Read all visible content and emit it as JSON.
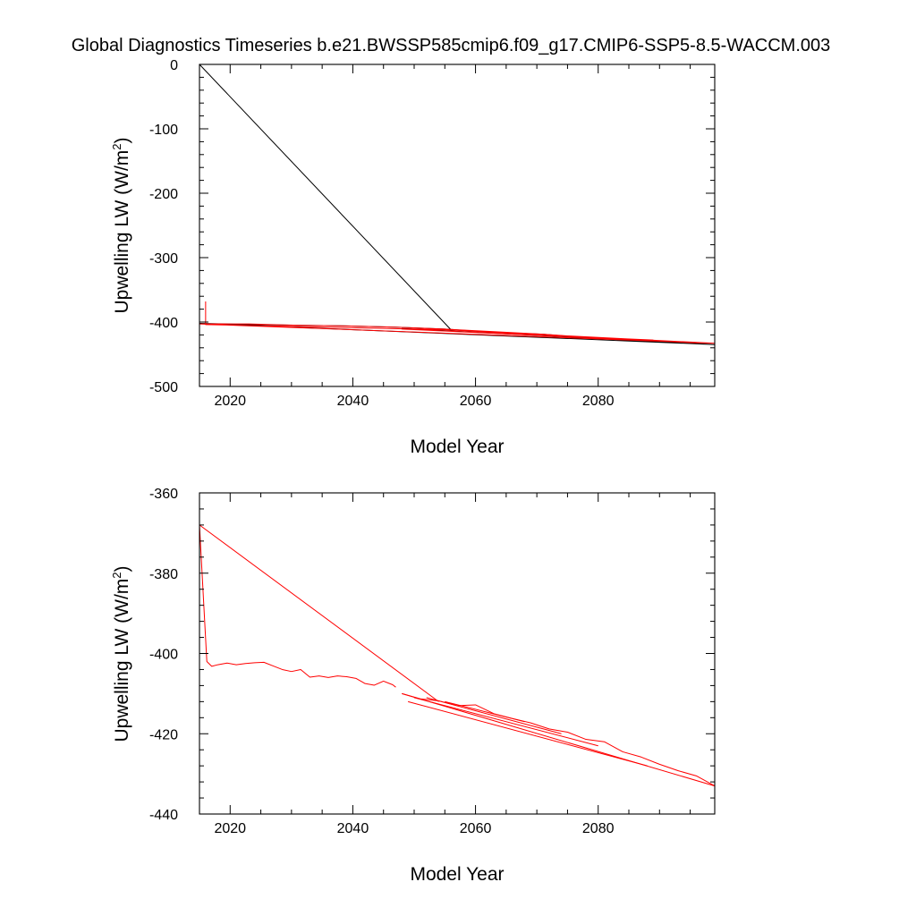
{
  "page": {
    "title": "Global Diagnostics Timeseries b.e21.BWSSP585cmip6.f09_g17.CMIP6-SSP5-8.5-WACCM.003"
  },
  "colors": {
    "global_series": "#000000",
    "red_series": "#ff0000"
  },
  "chart_data": [
    {
      "type": "line",
      "title": "Global Diagnostics Timeseries b.e21.BWSSP585cmip6.f09_g17.CMIP6-SSP5-8.5-WACCM.003",
      "xlabel": "Model Year",
      "ylabel": "Upwelling LW (W/m²)",
      "ylabel_main": "Upwelling LW (W/m",
      "ylabel_sup": "2",
      "ylabel_end": ")",
      "xlim": [
        2015,
        2099
      ],
      "ylim": [
        -500,
        0
      ],
      "xticks": [
        2020,
        2040,
        2060,
        2080
      ],
      "xtick_labels": [
        "2020",
        "2040",
        "2060",
        "2080"
      ],
      "yticks": [
        -500,
        -400,
        -300,
        -200,
        -100,
        0
      ],
      "ytick_labels": [
        "-500",
        "-400",
        "-300",
        "-200",
        "-100",
        "0"
      ],
      "grid": false,
      "series": [
        {
          "color": "#000000",
          "x": [
            2015,
            2056,
            2099,
            2015,
            2023,
            2031,
            2039,
            2047,
            2055,
            2063,
            2071,
            2079,
            2087,
            2095,
            2099,
            2048,
            2089
          ],
          "y": [
            0,
            -412,
            -435,
            -402,
            -404,
            -405,
            -406,
            -408,
            -411,
            -416,
            -419,
            -425,
            -429,
            -433,
            -435,
            -410,
            -430
          ]
        },
        {
          "color": "#ff0000",
          "x": [
            2016,
            2016,
            2055,
            2099,
            2015,
            2023,
            2031,
            2039,
            2047,
            2055,
            2063,
            2071,
            2079,
            2087,
            2095,
            2099,
            2048,
            2089
          ],
          "y": [
            -368,
            -404,
            -412,
            -433,
            -403,
            -403,
            -405,
            -406,
            -408,
            -411,
            -415,
            -419,
            -424,
            -428,
            -432,
            -433,
            -411,
            -428
          ]
        }
      ]
    },
    {
      "type": "line",
      "title": "",
      "xlabel": "Model Year",
      "ylabel": "Upwelling LW (W/m²)",
      "ylabel_main": "Upwelling LW (W/m",
      "ylabel_sup": "2",
      "ylabel_end": ")",
      "xlim": [
        2015,
        2099
      ],
      "ylim": [
        -440,
        -360
      ],
      "xticks": [
        2020,
        2040,
        2060,
        2080
      ],
      "xtick_labels": [
        "2020",
        "2040",
        "2060",
        "2080"
      ],
      "yticks": [
        -440,
        -420,
        -400,
        -380,
        -360
      ],
      "ytick_labels": [
        "-440",
        "-420",
        "-400",
        "-380",
        "-360"
      ],
      "grid": false,
      "series": [
        {
          "color": "#ff0000",
          "x": [
            2015.0,
            2016.2,
            2017.0,
            2018.0,
            2019.5,
            2021.0,
            2022.5,
            2024.0,
            2025.5,
            2027.0,
            2028.5,
            2030.0,
            2031.5,
            2033.0,
            2034.5,
            2036.0,
            2037.5,
            2039.0,
            2040.5,
            2042.0,
            2043.5,
            2045.0,
            2046.5,
            2047.0
          ],
          "y": [
            -368.0,
            -402.0,
            -403.2,
            -402.8,
            -402.4,
            -402.8,
            -402.5,
            -402.3,
            -402.2,
            -403.1,
            -404.0,
            -404.5,
            -404.0,
            -405.9,
            -405.6,
            -406.0,
            -405.6,
            -405.8,
            -406.2,
            -407.5,
            -407.9,
            -406.9,
            -407.8,
            -408.4
          ]
        },
        {
          "color": "#ff0000",
          "x": [
            2015,
            2054
          ],
          "y": [
            -368,
            -412
          ]
        },
        {
          "color": "#ff0000",
          "x": [
            2048,
            2051,
            2054,
            2057,
            2060,
            2063,
            2066,
            2069,
            2072,
            2075,
            2078,
            2081,
            2084,
            2087,
            2090,
            2093,
            2096,
            2099
          ],
          "y": [
            -410.0,
            -411.3,
            -411.8,
            -413.0,
            -412.8,
            -415.0,
            -416.2,
            -417.3,
            -418.8,
            -419.6,
            -421.4,
            -422.0,
            -424.5,
            -425.8,
            -427.6,
            -429.2,
            -430.5,
            -433.0
          ]
        },
        {
          "color": "#ff0000",
          "x": [
            2048,
            2099
          ],
          "y": [
            -410,
            -433
          ]
        },
        {
          "color": "#ff0000",
          "x": [
            2049,
            2088
          ],
          "y": [
            -412,
            -428
          ]
        },
        {
          "color": "#ff0000",
          "x": [
            2050,
            2080
          ],
          "y": [
            -411,
            -423
          ]
        },
        {
          "color": "#ff0000",
          "x": [
            2052,
            2074
          ],
          "y": [
            -411,
            -420
          ]
        },
        {
          "color": "#ff0000",
          "x": [
            2055,
            2068
          ],
          "y": [
            -412,
            -417
          ]
        }
      ]
    }
  ]
}
